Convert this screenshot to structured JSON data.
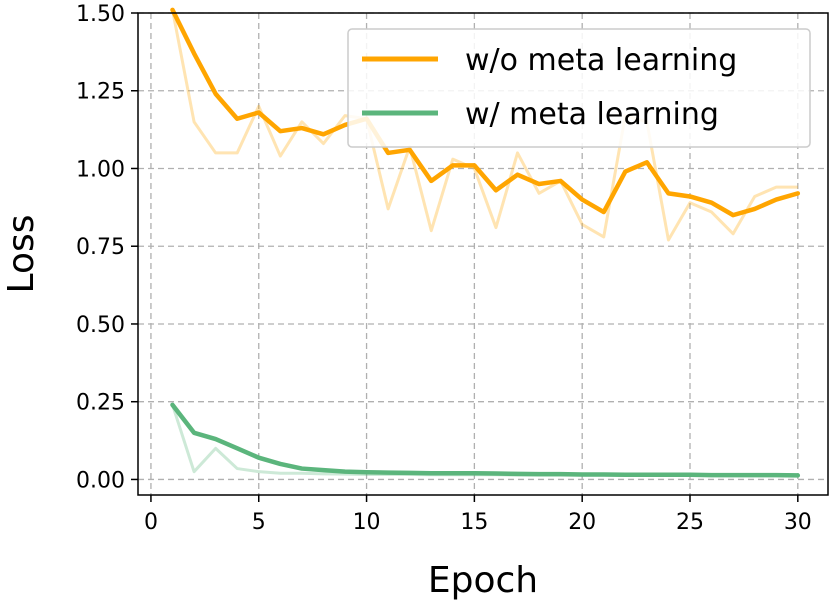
{
  "chart_data": {
    "type": "line",
    "xlabel": "Epoch",
    "ylabel": "Loss",
    "xlim": [
      -0.6,
      31.4
    ],
    "ylim": [
      -0.05,
      1.5
    ],
    "xticks": [
      "0",
      "5",
      "10",
      "15",
      "20",
      "25",
      "30"
    ],
    "yticks": [
      "0.00",
      "0.25",
      "0.50",
      "0.75",
      "1.00",
      "1.25",
      "1.50"
    ],
    "grid": true,
    "legend_position": "top-right",
    "x": [
      1,
      2,
      3,
      4,
      5,
      6,
      7,
      8,
      9,
      10,
      11,
      12,
      13,
      14,
      15,
      16,
      17,
      18,
      19,
      20,
      21,
      22,
      23,
      24,
      25,
      26,
      27,
      28,
      29,
      30
    ],
    "series": [
      {
        "name": "w/o meta learning",
        "color": "#FFA500",
        "values": [
          1.51,
          1.37,
          1.24,
          1.16,
          1.18,
          1.12,
          1.13,
          1.11,
          1.14,
          1.16,
          1.05,
          1.06,
          0.96,
          1.01,
          1.01,
          0.93,
          0.98,
          0.95,
          0.96,
          0.9,
          0.86,
          0.99,
          1.02,
          0.92,
          0.91,
          0.89,
          0.85,
          0.87,
          0.9,
          0.92
        ],
        "raw": [
          1.51,
          1.15,
          1.05,
          1.05,
          1.2,
          1.04,
          1.15,
          1.08,
          1.17,
          1.16,
          0.87,
          1.07,
          0.8,
          1.03,
          1.0,
          0.81,
          1.05,
          0.92,
          0.96,
          0.82,
          0.78,
          1.17,
          1.15,
          0.77,
          0.89,
          0.86,
          0.79,
          0.91,
          0.94,
          0.94
        ]
      },
      {
        "name": "w/ meta learning",
        "color": "#5BB57C",
        "values": [
          0.24,
          0.15,
          0.13,
          0.1,
          0.07,
          0.05,
          0.035,
          0.03,
          0.025,
          0.023,
          0.022,
          0.021,
          0.02,
          0.02,
          0.02,
          0.019,
          0.018,
          0.017,
          0.017,
          0.016,
          0.016,
          0.015,
          0.015,
          0.015,
          0.015,
          0.014,
          0.014,
          0.014,
          0.014,
          0.013
        ],
        "raw": [
          0.24,
          0.025,
          0.1,
          0.035,
          0.025,
          0.02,
          0.02,
          0.018,
          0.017,
          0.016,
          0.016,
          0.016,
          0.015,
          0.015,
          0.015,
          0.015,
          0.014,
          0.014,
          0.014,
          0.014,
          0.014,
          0.013,
          0.013,
          0.013,
          0.013,
          0.013,
          0.013,
          0.013,
          0.013,
          0.013
        ]
      }
    ]
  }
}
